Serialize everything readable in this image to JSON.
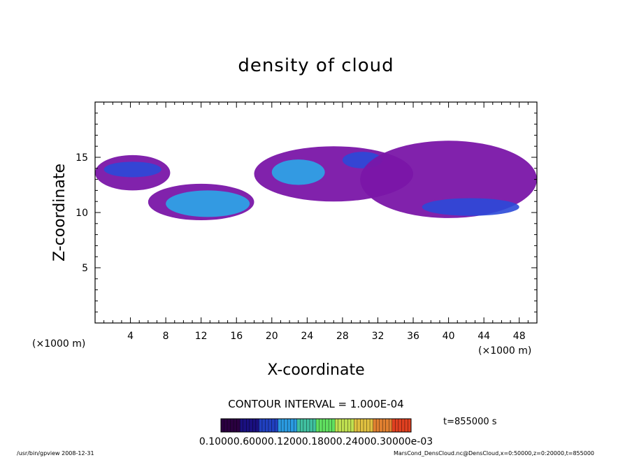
{
  "chart_data": {
    "type": "heatmap",
    "title": "density of cloud",
    "xlabel": "X-coordinate",
    "ylabel": "Z-coordinate",
    "x_unit": "(×1000 m)",
    "y_unit": "(×1000 m)",
    "xlim": [
      0,
      50
    ],
    "ylim": [
      0,
      20
    ],
    "x_ticks": [
      4,
      8,
      12,
      16,
      20,
      24,
      28,
      32,
      36,
      40,
      44,
      48
    ],
    "y_ticks": [
      5,
      10,
      15
    ],
    "contour_interval": "CONTOUR INTERVAL = 1.000E-04",
    "colorbar_labels": "0.10000.60000.12000.18000.24000.30000e-03",
    "time": "t=855000  s",
    "grid": false,
    "colors": {
      "low": "#7a16a8",
      "mid": "#2b49d8",
      "high": "#2aa7e8",
      "peak": "#6fe6f4",
      "contour": "#1a7a1a"
    },
    "cloud_regions": [
      {
        "x": [
          0,
          8.5
        ],
        "z": [
          12.0,
          15.2
        ],
        "level": "low"
      },
      {
        "x": [
          1,
          7.5
        ],
        "z": [
          13.2,
          14.6
        ],
        "level": "mid"
      },
      {
        "x": [
          6,
          18
        ],
        "z": [
          9.3,
          12.6
        ],
        "level": "low"
      },
      {
        "x": [
          8,
          17.5
        ],
        "z": [
          9.6,
          12.0
        ],
        "level": "high"
      },
      {
        "x": [
          18,
          36
        ],
        "z": [
          11.0,
          16.0
        ],
        "level": "low"
      },
      {
        "x": [
          20,
          26
        ],
        "z": [
          12.5,
          14.8
        ],
        "level": "high"
      },
      {
        "x": [
          28,
          32.5
        ],
        "z": [
          14.0,
          15.5
        ],
        "level": "mid"
      },
      {
        "x": [
          30,
          50
        ],
        "z": [
          9.5,
          16.5
        ],
        "level": "low"
      },
      {
        "x": [
          37,
          48
        ],
        "z": [
          9.7,
          11.3
        ],
        "level": "mid"
      }
    ]
  },
  "footer": {
    "left": "/usr/bin/gpview   2008-12-31",
    "right": "MarsCond_DensCloud.nc@DensCloud,x=0:50000,z=0:20000,t=855000"
  }
}
